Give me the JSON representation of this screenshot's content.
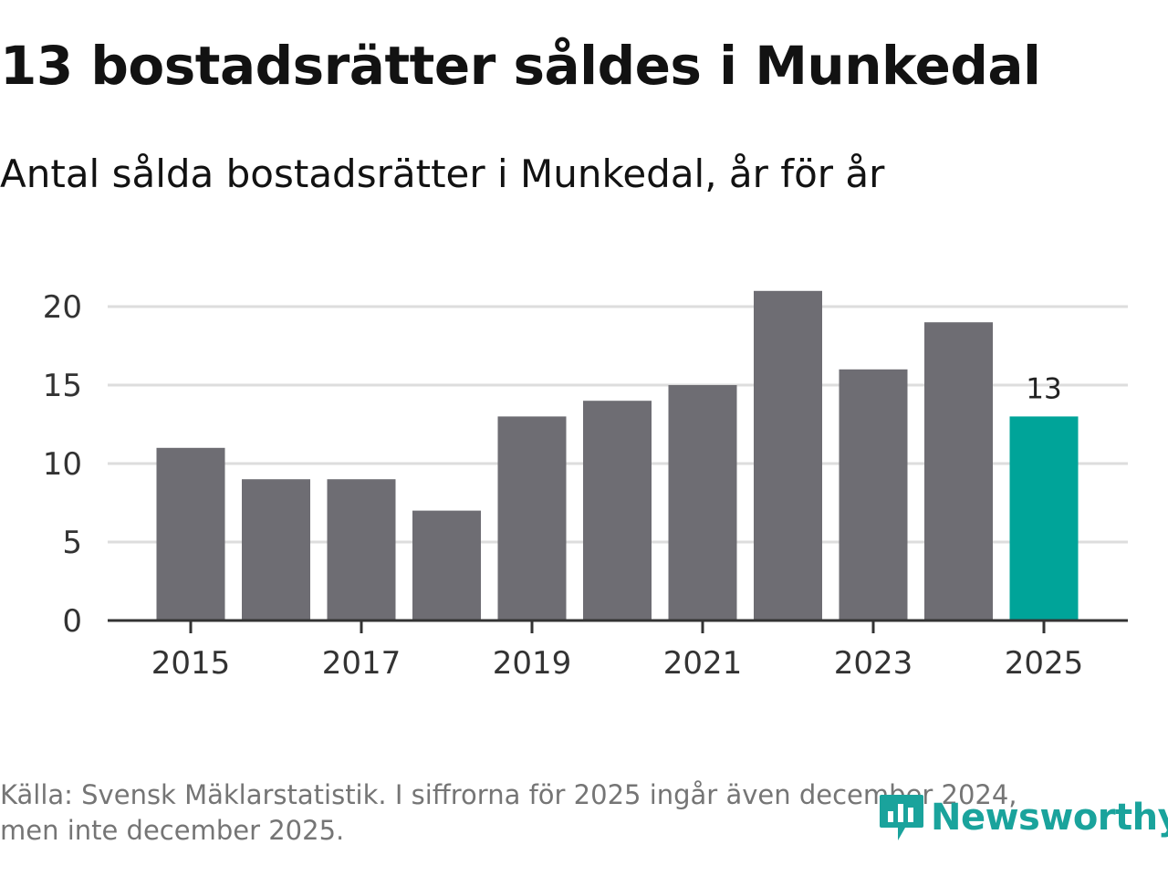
{
  "header": {
    "title": "13 bostadsrätter såldes i Munkedal",
    "subtitle": "Antal sålda bostadsrätter i Munkedal, år för år"
  },
  "footer": {
    "line1": "Källa: Svensk Mäklarstatistik. I siffrorna för 2025 ingår även december 2024,",
    "line2": "men inte december 2025."
  },
  "logo": {
    "text": "Newsworthy",
    "icon": "newsworthy-logo-icon"
  },
  "colors": {
    "bar": "#6e6d73",
    "highlight": "#00a499",
    "grid": "#dddddd",
    "axis": "#333333",
    "logo": "#1aa39c"
  },
  "chart_data": {
    "type": "bar",
    "title": "13 bostadsrätter såldes i Munkedal",
    "subtitle": "Antal sålda bostadsrätter i Munkedal, år för år",
    "xlabel": "",
    "ylabel": "",
    "categories": [
      "2015",
      "2016",
      "2017",
      "2018",
      "2019",
      "2020",
      "2021",
      "2022",
      "2023",
      "2024",
      "2025"
    ],
    "values": [
      11,
      9,
      9,
      7,
      13,
      14,
      15,
      21,
      16,
      19,
      13
    ],
    "highlight_category": "2025",
    "highlight_label": "13",
    "x_tick_labels": [
      "2015",
      "2017",
      "2019",
      "2021",
      "2023",
      "2025"
    ],
    "y_ticks": [
      0,
      5,
      10,
      15,
      20
    ],
    "ylim": [
      0,
      22
    ],
    "grid": true,
    "legend": "none"
  }
}
